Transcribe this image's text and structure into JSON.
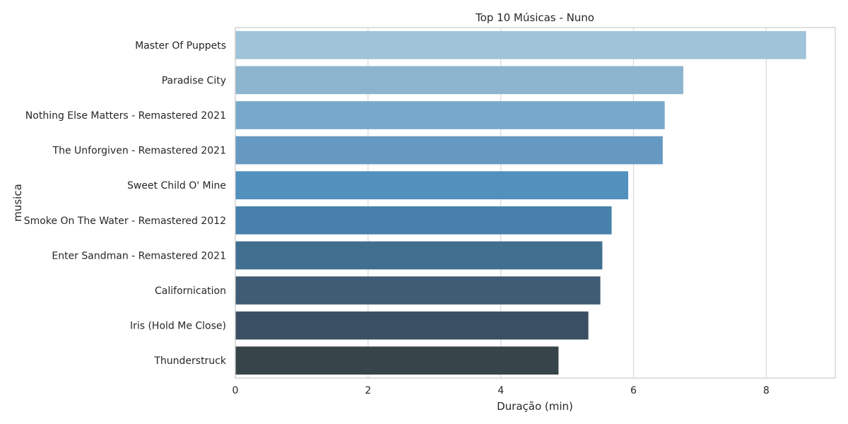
{
  "chart_data": {
    "type": "bar",
    "orientation": "horizontal",
    "title": "Top 10 Músicas - Nuno",
    "xlabel": "Duração (min)",
    "ylabel": "musica",
    "xlim": [
      0,
      9.04
    ],
    "xticks": [
      0,
      2,
      4,
      6,
      8
    ],
    "grid": true,
    "categories": [
      "Master Of Puppets",
      "Paradise City",
      "Nothing Else Matters - Remastered 2021",
      "The Unforgiven - Remastered 2021",
      "Sweet Child O' Mine",
      "Smoke On The Water - Remastered 2012",
      "Enter Sandman - Remastered 2021",
      "Californication",
      "Iris (Hold Me Close)",
      "Thunderstruck"
    ],
    "values": [
      8.6,
      6.75,
      6.47,
      6.44,
      5.92,
      5.67,
      5.53,
      5.5,
      5.32,
      4.87
    ],
    "colors": [
      "#9fc3d9",
      "#8db4cf",
      "#79a9ca",
      "#6699c2",
      "#5290bd",
      "#4780ab",
      "#416f90",
      "#3f5c74",
      "#3a4f61",
      "#374449"
    ]
  }
}
